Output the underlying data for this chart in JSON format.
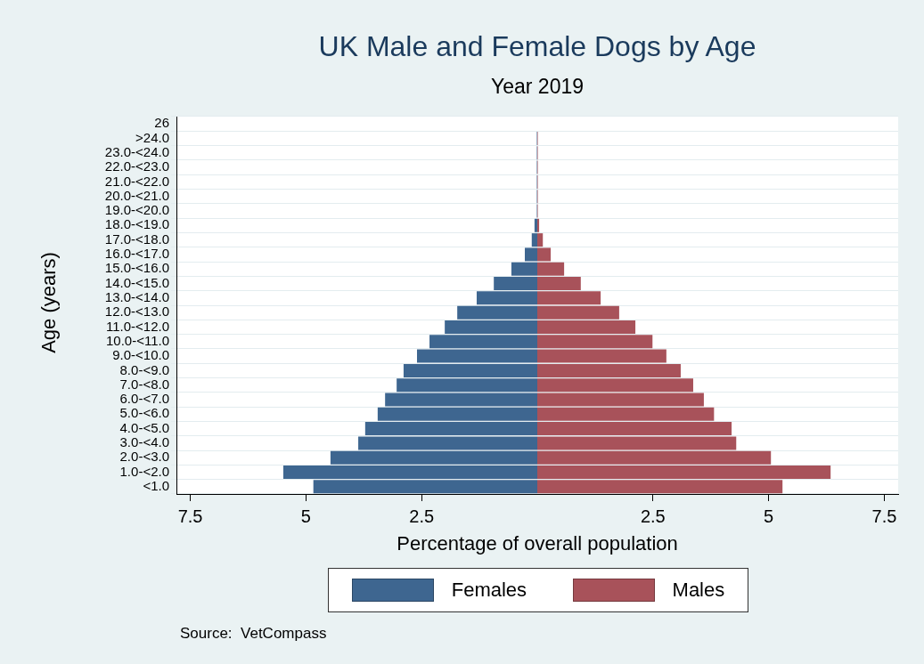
{
  "chart_data": [
    {
      "type": "bar",
      "orientation": "horizontal",
      "title": "UK Male and Female Dogs by Age",
      "subtitle": "Year 2019",
      "xlabel": "Percentage of overall population",
      "ylabel": "Age (years)",
      "categories": [
        "26",
        ">24.0",
        "23.0-<24.0",
        "22.0-<23.0",
        "21.0-<22.0",
        "20.0-<21.0",
        "19.0-<20.0",
        "18.0-<19.0",
        "17.0-<18.0",
        "16.0-<17.0",
        "15.0-<16.0",
        "14.0-<15.0",
        "13.0-<14.0",
        "12.0-<13.0",
        "11.0-<12.0",
        "10.0-<11.0",
        "9.0-<10.0",
        "8.0-<9.0",
        "7.0-<8.0",
        "6.0-<7.0",
        "5.0-<6.0",
        "4.0-<5.0",
        "3.0-<4.0",
        "2.0-<3.0",
        "1.0-<2.0",
        "<1.0"
      ],
      "series": [
        {
          "name": "Females",
          "color": "#3e6690",
          "values": [
            null,
            0.01,
            0.01,
            0.01,
            0.01,
            0.01,
            0.01,
            0.06,
            0.12,
            0.27,
            0.56,
            0.94,
            1.31,
            1.73,
            2.0,
            2.33,
            2.6,
            2.89,
            3.04,
            3.29,
            3.45,
            3.72,
            3.87,
            4.47,
            5.49,
            4.84
          ]
        }
      ],
      "xlim": [
        7.8,
        0
      ],
      "xticks": [
        7.5,
        5,
        2.5
      ],
      "grid": "y",
      "legend": "bottom",
      "annotations": [
        "Source:  VetCompass"
      ]
    },
    {
      "type": "bar",
      "orientation": "horizontal",
      "categories": [
        null,
        null,
        null,
        null,
        null,
        null,
        null,
        null,
        null,
        null,
        null,
        null,
        null,
        null,
        null,
        null,
        null,
        null,
        null,
        null,
        null,
        null,
        null,
        null,
        null,
        null
      ],
      "series": [
        {
          "name": "Males",
          "color": "#a8525a",
          "values": [
            null,
            0.01,
            0.01,
            0.01,
            0.01,
            0.01,
            0.01,
            0.04,
            0.12,
            0.29,
            0.58,
            0.94,
            1.37,
            1.77,
            2.12,
            2.49,
            2.79,
            3.1,
            3.37,
            3.6,
            3.82,
            4.2,
            4.3,
            5.05,
            6.34,
            5.3
          ]
        }
      ],
      "xlim": [
        0,
        7.8
      ],
      "xticks": [
        2.5,
        5,
        7.5
      ],
      "grid": "y",
      "tick_labels": "x"
    }
  ]
}
